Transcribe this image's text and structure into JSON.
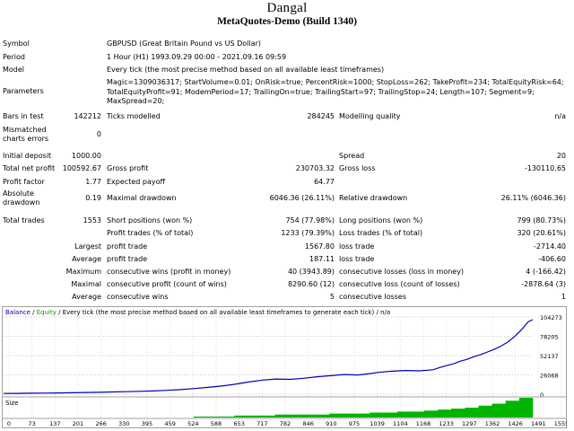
{
  "header": {
    "ea_name": "Dangal",
    "server": "MetaQuotes-Demo (Build 1340)"
  },
  "info": {
    "symbol_label": "Symbol",
    "symbol_value": "GBPUSD (Great Britain Pound vs US Dollar)",
    "period_label": "Period",
    "period_value": "1 Hour (H1) 1993.09.29 00:00 - 2021.09.16 09:59",
    "model_label": "Model",
    "model_value": "Every tick (the most precise method based on all available least timeframes)",
    "parameters_label": "Parameters",
    "parameters_line1": "Magic=1309036317; StartVolume=0.01; OnRisk=true; PercentRisk=1000; StopLoss=262; TakeProfit=234; TotalEquityRisk=64;",
    "parameters_line2": "TotalEquityProfit=91; ModemPeriod=17; TrailingOn=true; TrailingStart=97; TrailingStop=24; Length=107; Segment=9;",
    "parameters_line3": "MaxSpread=20;"
  },
  "stats": {
    "bars_label": "Bars in test",
    "bars_value": "142212",
    "ticks_label": "Ticks modelled",
    "ticks_value": "284245",
    "quality_label": "Modelling quality",
    "quality_value": "n/a",
    "mismatch_label_1": "Mismatched",
    "mismatch_label_2": "charts errors",
    "mismatch_value": "0",
    "deposit_label": "Initial deposit",
    "deposit_value": "1000.00",
    "spread_label": "Spread",
    "spread_value": "20",
    "net_profit_label": "Total net profit",
    "net_profit_value": "100592.67",
    "gross_profit_label": "Gross profit",
    "gross_profit_value": "230703.32",
    "gross_loss_label": "Gross loss",
    "gross_loss_value": "-130110.65",
    "profit_factor_label": "Profit factor",
    "profit_factor_value": "1.77",
    "expected_payoff_label": "Expected payoff",
    "expected_payoff_value": "64.77",
    "abs_dd_label_1": "Absolute",
    "abs_dd_label_2": "drawdown",
    "abs_dd_value": "0.19",
    "max_dd_label": "Maximal drawdown",
    "max_dd_value": "6046.36 (26.11%)",
    "rel_dd_label": "Relative drawdown",
    "rel_dd_value": "26.11% (6046.36)",
    "total_trades_label": "Total trades",
    "total_trades_value": "1553",
    "short_label": "Short positions (won %)",
    "short_value": "754 (77.98%)",
    "long_label": "Long positions (won %)",
    "long_value": "799 (80.73%)",
    "profit_trades_label": "Profit trades (% of total)",
    "profit_trades_value": "1233 (79.39%)",
    "loss_trades_label": "Loss trades (% of total)",
    "loss_trades_value": "320 (20.61%)",
    "largest_label": "Largest",
    "largest_profit_label": "profit trade",
    "largest_profit_value": "1567.80",
    "largest_loss_label": "loss trade",
    "largest_loss_value": "-2714.40",
    "average_label": "Average",
    "average_profit_label": "profit trade",
    "average_profit_value": "187.11",
    "average_loss_label": "loss trade",
    "average_loss_value": "-406.60",
    "maximum_label": "Maximum",
    "max_cons_wins_label": "consecutive wins (profit in money)",
    "max_cons_wins_value": "40 (3943.89)",
    "max_cons_losses_label": "consecutive losses (loss in money)",
    "max_cons_losses_value": "4 (-166.42)",
    "maximal_label": "Maximal",
    "maximal_cons_profit_label": "consecutive profit (count of wins)",
    "maximal_cons_profit_value": "8290.60 (12)",
    "maximal_cons_loss_label": "consecutive loss (count of losses)",
    "maximal_cons_loss_value": "-2878.64 (3)",
    "average2_label": "Average",
    "avg_cons_wins_label": "consecutive wins",
    "avg_cons_wins_value": "5",
    "avg_cons_losses_label": "consecutive losses",
    "avg_cons_losses_value": "1"
  },
  "colors": {
    "balance_line": "#0000b4",
    "equity_text": "#00a000",
    "size_bars": "#00b400",
    "grid": "#c8c8c8",
    "chart_border": "#a0a0a0"
  },
  "chart_data": {
    "type": "line",
    "title": "",
    "legend_text": {
      "balance": "Balance",
      "sep1": " / ",
      "equity": "Equity",
      "rest": " / Every tick (the most precise method based on all available least timeframes to generate each tick) / n/a"
    },
    "xlabel": "",
    "ylabel": "",
    "x_ticks": [
      "0",
      "73",
      "137",
      "201",
      "266",
      "330",
      "395",
      "459",
      "524",
      "588",
      "653",
      "717",
      "782",
      "846",
      "910",
      "975",
      "1039",
      "1104",
      "1168",
      "1233",
      "1297",
      "1362",
      "1426",
      "1491",
      "1555"
    ],
    "y_ticks": [
      "104273",
      "78205",
      "52137",
      "26068",
      "0"
    ],
    "ylim": [
      0,
      104273
    ],
    "xlim": [
      0,
      1553
    ],
    "grid": true,
    "series": [
      {
        "name": "Balance",
        "x": [
          0,
          40,
          80,
          120,
          160,
          200,
          240,
          280,
          320,
          360,
          400,
          440,
          480,
          520,
          560,
          600,
          640,
          680,
          720,
          760,
          800,
          840,
          880,
          920,
          960,
          1000,
          1040,
          1080,
          1100,
          1140,
          1180,
          1220,
          1260,
          1280,
          1300,
          1320,
          1340,
          1360,
          1380,
          1400,
          1420,
          1440,
          1460,
          1480,
          1500,
          1520,
          1540,
          1553
        ],
        "values": [
          1000,
          1100,
          1300,
          1500,
          1700,
          2000,
          2300,
          2600,
          3000,
          3400,
          3900,
          4400,
          5200,
          6200,
          7600,
          9200,
          11000,
          13500,
          16500,
          19000,
          20500,
          20000,
          21500,
          23500,
          25000,
          26500,
          26000,
          28000,
          29500,
          31000,
          32000,
          31500,
          33000,
          36000,
          38500,
          41000,
          44500,
          47000,
          50500,
          53500,
          57000,
          60500,
          65000,
          70500,
          78000,
          87000,
          98000,
          100593
        ]
      }
    ],
    "size_panel": {
      "label": "Size",
      "values": [
        0,
        0,
        0,
        0,
        0,
        0,
        0,
        0,
        0,
        0,
        0,
        0,
        0,
        0,
        1,
        1,
        1,
        2,
        2,
        2,
        3,
        3,
        3,
        3,
        4,
        4,
        4,
        5,
        5,
        6,
        6,
        7,
        8,
        9,
        10,
        12,
        14,
        17,
        20
      ]
    }
  }
}
